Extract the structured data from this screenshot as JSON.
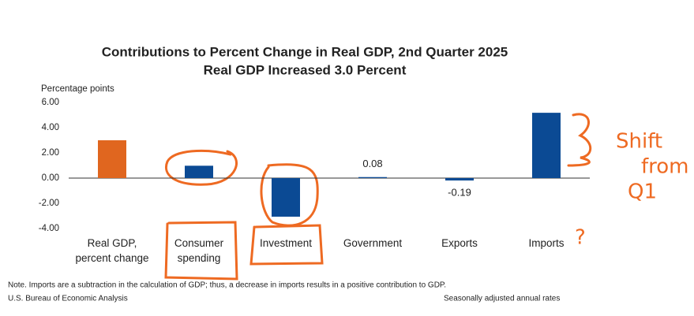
{
  "chart_data": {
    "type": "bar",
    "title": "Contributions to Percent Change in Real GDP, 2nd Quarter 2025",
    "subtitle": "Real GDP Increased 3.0 Percent",
    "y_label": "Percentage points",
    "categories": [
      "Real GDP,\npercent change",
      "Consumer\nspending",
      "Investment",
      "Government",
      "Exports",
      "Imports"
    ],
    "values": [
      3.0,
      0.98,
      -3.06,
      0.08,
      -0.19,
      5.18
    ],
    "value_labels": [
      null,
      null,
      null,
      "0.08",
      "-0.19",
      null
    ],
    "colors": [
      "#e0661f",
      "#0b4a94",
      "#0b4a94",
      "#0b4a94",
      "#0b4a94",
      "#0b4a94"
    ],
    "ylim": [
      -4,
      6
    ],
    "yticks": [
      {
        "value": 6,
        "label": "6.00"
      },
      {
        "value": 4,
        "label": "4.00"
      },
      {
        "value": 2,
        "label": "2.00"
      },
      {
        "value": 0,
        "label": "0.00"
      },
      {
        "value": -2,
        "label": "-2.00"
      },
      {
        "value": -4,
        "label": "-4.00"
      }
    ],
    "note": "Note. Imports are a subtraction in the calculation of GDP; thus, a decrease in imports results in a positive contribution to GDP.",
    "source": "U.S. Bureau of Economic Analysis",
    "rates_note": "Seasonally adjusted annual rates",
    "annotations": [
      "Shift",
      "from",
      "Q1",
      "?"
    ]
  }
}
